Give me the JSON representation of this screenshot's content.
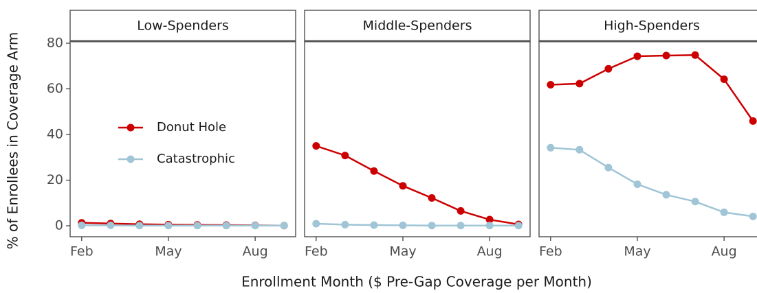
{
  "y_label": "% of Enrollees in Coverage Arm",
  "x_label": "Enrollment Month ($ Pre-Gap Coverage per Month)",
  "chart_data": [
    {
      "type": "line",
      "title": "Low-Spenders",
      "categories": [
        "Feb",
        null,
        null,
        "May",
        null,
        null,
        "Aug",
        null
      ],
      "ylim": [
        -4.8,
        80.9
      ],
      "yticks": [
        0,
        20,
        40,
        60,
        80
      ],
      "legend": "inside-left",
      "series": [
        {
          "name": "Donut Hole",
          "color": "#cc0000",
          "values": [
            1.3,
            1.0,
            0.7,
            0.5,
            0.4,
            0.3,
            0.2,
            0.1
          ]
        },
        {
          "name": "Catastrophic",
          "color": "#9fc5d6",
          "values": [
            0.2,
            0.2,
            0.1,
            0.1,
            0.1,
            0.1,
            0.1,
            0.1
          ]
        }
      ]
    },
    {
      "type": "line",
      "title": "Middle-Spenders",
      "categories": [
        "Feb",
        null,
        null,
        "May",
        null,
        null,
        "Aug",
        null
      ],
      "ylim": [
        -4.8,
        80.9
      ],
      "series": [
        {
          "name": "Donut Hole",
          "color": "#cc0000",
          "values": [
            35,
            30.8,
            24,
            17.5,
            12.2,
            6.5,
            2.7,
            0.6
          ]
        },
        {
          "name": "Catastrophic",
          "color": "#9fc5d6",
          "values": [
            0.9,
            0.5,
            0.3,
            0.2,
            0.1,
            0.1,
            0.1,
            0.1
          ]
        }
      ]
    },
    {
      "type": "line",
      "title": "High-Spenders",
      "categories": [
        "Feb",
        null,
        null,
        "May",
        null,
        null,
        "Aug",
        null
      ],
      "ylim": [
        -4.8,
        80.9
      ],
      "series": [
        {
          "name": "Donut Hole",
          "color": "#cc0000",
          "values": [
            61.8,
            62.3,
            68.8,
            74.3,
            74.6,
            74.8,
            64.2,
            45.9
          ]
        },
        {
          "name": "Catastrophic",
          "color": "#9fc5d6",
          "values": [
            34.2,
            33.3,
            25.5,
            18.2,
            13.6,
            10.6,
            5.9,
            4.1
          ]
        }
      ]
    }
  ]
}
